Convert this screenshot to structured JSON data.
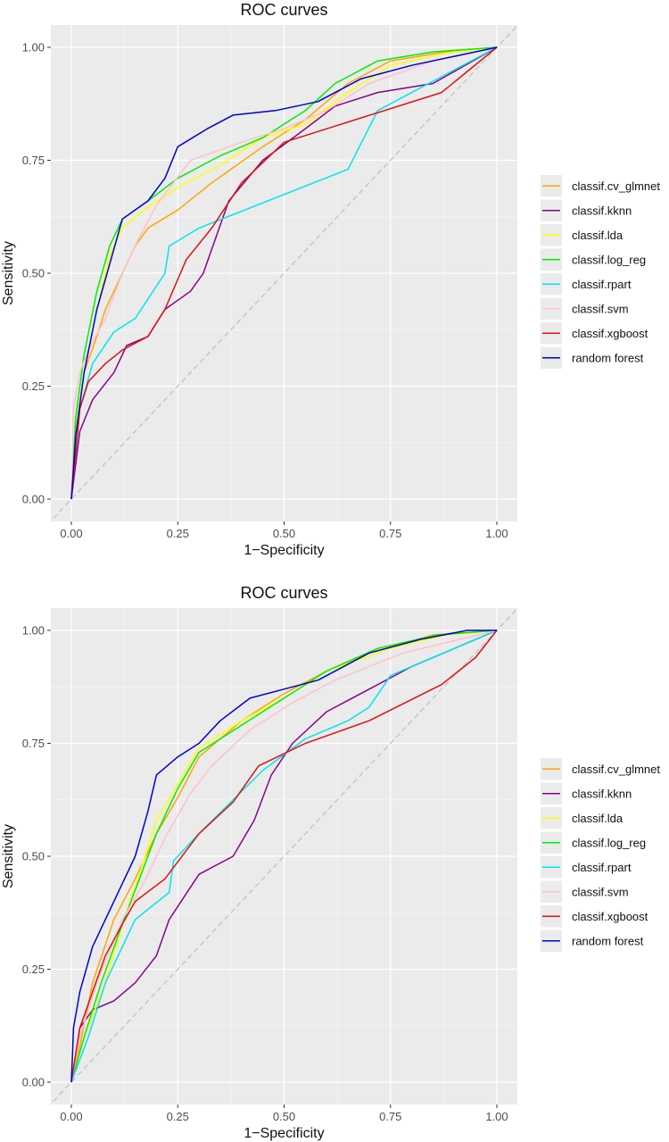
{
  "chart_data": [
    {
      "type": "line",
      "title": "ROC curves",
      "xlabel": "1−Specificity",
      "ylabel": "Sensitivity",
      "xlim": [
        0,
        1
      ],
      "ylim": [
        0,
        1
      ],
      "x_ticks": [
        "0.00",
        "0.25",
        "0.50",
        "0.75",
        "1.00"
      ],
      "y_ticks": [
        "0.00",
        "0.25",
        "0.50",
        "0.75",
        "1.00"
      ],
      "grid": true,
      "legend_position": "right",
      "diagonal_reference": {
        "style": "dashed",
        "color": "#bebebe",
        "points": [
          [
            0,
            0
          ],
          [
            1,
            1
          ]
        ]
      },
      "series": [
        {
          "name": "classif.cv_glmnet",
          "color": "#ffa500",
          "points": [
            [
              0,
              0
            ],
            [
              0.01,
              0.15
            ],
            [
              0.03,
              0.28
            ],
            [
              0.06,
              0.36
            ],
            [
              0.08,
              0.42
            ],
            [
              0.12,
              0.5
            ],
            [
              0.15,
              0.56
            ],
            [
              0.18,
              0.6
            ],
            [
              0.25,
              0.64
            ],
            [
              0.33,
              0.7
            ],
            [
              0.45,
              0.78
            ],
            [
              0.55,
              0.84
            ],
            [
              0.65,
              0.92
            ],
            [
              0.75,
              0.97
            ],
            [
              0.88,
              0.99
            ],
            [
              1,
              1
            ]
          ]
        },
        {
          "name": "classif.kknn",
          "color": "#8b008b",
          "points": [
            [
              0,
              0
            ],
            [
              0.02,
              0.15
            ],
            [
              0.05,
              0.22
            ],
            [
              0.1,
              0.28
            ],
            [
              0.13,
              0.34
            ],
            [
              0.18,
              0.36
            ],
            [
              0.22,
              0.42
            ],
            [
              0.28,
              0.46
            ],
            [
              0.31,
              0.5
            ],
            [
              0.34,
              0.58
            ],
            [
              0.37,
              0.66
            ],
            [
              0.45,
              0.75
            ],
            [
              0.55,
              0.82
            ],
            [
              0.62,
              0.87
            ],
            [
              0.72,
              0.9
            ],
            [
              0.85,
              0.92
            ],
            [
              1,
              1
            ]
          ]
        },
        {
          "name": "classif.lda",
          "color": "#ffff00",
          "points": [
            [
              0,
              0
            ],
            [
              0.01,
              0.15
            ],
            [
              0.03,
              0.28
            ],
            [
              0.06,
              0.42
            ],
            [
              0.09,
              0.54
            ],
            [
              0.12,
              0.6
            ],
            [
              0.17,
              0.64
            ],
            [
              0.25,
              0.69
            ],
            [
              0.35,
              0.74
            ],
            [
              0.45,
              0.8
            ],
            [
              0.55,
              0.83
            ],
            [
              0.65,
              0.9
            ],
            [
              0.75,
              0.96
            ],
            [
              0.9,
              0.99
            ],
            [
              1,
              1
            ]
          ]
        },
        {
          "name": "classif.log_reg",
          "color": "#00ee00",
          "points": [
            [
              0,
              0
            ],
            [
              0.01,
              0.18
            ],
            [
              0.03,
              0.32
            ],
            [
              0.06,
              0.46
            ],
            [
              0.09,
              0.56
            ],
            [
              0.12,
              0.62
            ],
            [
              0.18,
              0.66
            ],
            [
              0.25,
              0.71
            ],
            [
              0.35,
              0.76
            ],
            [
              0.45,
              0.8
            ],
            [
              0.55,
              0.86
            ],
            [
              0.62,
              0.92
            ],
            [
              0.72,
              0.97
            ],
            [
              0.85,
              0.99
            ],
            [
              1,
              1
            ]
          ]
        },
        {
          "name": "classif.rpart",
          "color": "#00e5ee",
          "points": [
            [
              0,
              0
            ],
            [
              0.02,
              0.2
            ],
            [
              0.05,
              0.3
            ],
            [
              0.1,
              0.37
            ],
            [
              0.15,
              0.4
            ],
            [
              0.22,
              0.5
            ],
            [
              0.23,
              0.56
            ],
            [
              0.3,
              0.6
            ],
            [
              0.65,
              0.73
            ],
            [
              0.72,
              0.86
            ],
            [
              1,
              1
            ]
          ]
        },
        {
          "name": "classif.svm",
          "color": "#ffc0cb",
          "points": [
            [
              0,
              0
            ],
            [
              0.005,
              0.2
            ],
            [
              0.02,
              0.28
            ],
            [
              0.04,
              0.33
            ],
            [
              0.08,
              0.4
            ],
            [
              0.12,
              0.5
            ],
            [
              0.16,
              0.58
            ],
            [
              0.2,
              0.65
            ],
            [
              0.28,
              0.75
            ],
            [
              0.4,
              0.79
            ],
            [
              0.5,
              0.82
            ],
            [
              0.6,
              0.86
            ],
            [
              0.7,
              0.92
            ],
            [
              0.85,
              0.97
            ],
            [
              1,
              1
            ]
          ]
        },
        {
          "name": "classif.xgboost",
          "color": "#dd1111",
          "points": [
            [
              0,
              0
            ],
            [
              0.02,
              0.2
            ],
            [
              0.04,
              0.26
            ],
            [
              0.08,
              0.3
            ],
            [
              0.12,
              0.33
            ],
            [
              0.18,
              0.36
            ],
            [
              0.22,
              0.42
            ],
            [
              0.27,
              0.53
            ],
            [
              0.33,
              0.6
            ],
            [
              0.4,
              0.7
            ],
            [
              0.5,
              0.79
            ],
            [
              0.87,
              0.9
            ],
            [
              1,
              1
            ]
          ]
        },
        {
          "name": "random forest",
          "color": "#0000cd",
          "points": [
            [
              0,
              0
            ],
            [
              0.01,
              0.14
            ],
            [
              0.03,
              0.28
            ],
            [
              0.06,
              0.42
            ],
            [
              0.09,
              0.52
            ],
            [
              0.12,
              0.62
            ],
            [
              0.18,
              0.66
            ],
            [
              0.22,
              0.71
            ],
            [
              0.25,
              0.78
            ],
            [
              0.32,
              0.82
            ],
            [
              0.38,
              0.85
            ],
            [
              0.48,
              0.86
            ],
            [
              0.58,
              0.88
            ],
            [
              0.68,
              0.93
            ],
            [
              0.8,
              0.96
            ],
            [
              0.9,
              0.98
            ],
            [
              1,
              1
            ]
          ]
        }
      ]
    },
    {
      "type": "line",
      "title": "ROC curves",
      "xlabel": "1−Specificity",
      "ylabel": "Sensitivity",
      "xlim": [
        0,
        1
      ],
      "ylim": [
        0,
        1
      ],
      "x_ticks": [
        "0.00",
        "0.25",
        "0.50",
        "0.75",
        "1.00"
      ],
      "y_ticks": [
        "0.00",
        "0.25",
        "0.50",
        "0.75",
        "1.00"
      ],
      "grid": true,
      "legend_position": "right",
      "diagonal_reference": {
        "style": "dashed",
        "color": "#bebebe",
        "points": [
          [
            0,
            0
          ],
          [
            1,
            1
          ]
        ]
      },
      "series": [
        {
          "name": "classif.cv_glmnet",
          "color": "#ffa500",
          "points": [
            [
              0,
              0
            ],
            [
              0.02,
              0.08
            ],
            [
              0.05,
              0.22
            ],
            [
              0.1,
              0.36
            ],
            [
              0.15,
              0.45
            ],
            [
              0.2,
              0.55
            ],
            [
              0.25,
              0.63
            ],
            [
              0.3,
              0.72
            ],
            [
              0.4,
              0.8
            ],
            [
              0.5,
              0.86
            ],
            [
              0.6,
              0.91
            ],
            [
              0.7,
              0.95
            ],
            [
              0.85,
              0.99
            ],
            [
              1,
              1
            ]
          ]
        },
        {
          "name": "classif.kknn",
          "color": "#8b008b",
          "points": [
            [
              0,
              0
            ],
            [
              0.02,
              0.12
            ],
            [
              0.05,
              0.16
            ],
            [
              0.1,
              0.18
            ],
            [
              0.15,
              0.22
            ],
            [
              0.2,
              0.28
            ],
            [
              0.23,
              0.36
            ],
            [
              0.3,
              0.46
            ],
            [
              0.38,
              0.5
            ],
            [
              0.43,
              0.58
            ],
            [
              0.47,
              0.68
            ],
            [
              0.52,
              0.75
            ],
            [
              0.6,
              0.82
            ],
            [
              0.68,
              0.86
            ],
            [
              0.8,
              0.92
            ],
            [
              1,
              1
            ]
          ]
        },
        {
          "name": "classif.lda",
          "color": "#ffff00",
          "points": [
            [
              0,
              0
            ],
            [
              0.03,
              0.1
            ],
            [
              0.08,
              0.22
            ],
            [
              0.12,
              0.35
            ],
            [
              0.16,
              0.46
            ],
            [
              0.2,
              0.58
            ],
            [
              0.25,
              0.66
            ],
            [
              0.3,
              0.74
            ],
            [
              0.4,
              0.8
            ],
            [
              0.5,
              0.85
            ],
            [
              0.6,
              0.91
            ],
            [
              0.75,
              0.96
            ],
            [
              0.88,
              0.99
            ],
            [
              1,
              1
            ]
          ]
        },
        {
          "name": "classif.log_reg",
          "color": "#00ee00",
          "points": [
            [
              0,
              0
            ],
            [
              0.03,
              0.1
            ],
            [
              0.07,
              0.22
            ],
            [
              0.12,
              0.35
            ],
            [
              0.16,
              0.45
            ],
            [
              0.2,
              0.55
            ],
            [
              0.25,
              0.65
            ],
            [
              0.3,
              0.73
            ],
            [
              0.4,
              0.79
            ],
            [
              0.5,
              0.85
            ],
            [
              0.6,
              0.91
            ],
            [
              0.72,
              0.96
            ],
            [
              0.86,
              0.99
            ],
            [
              1,
              1
            ]
          ]
        },
        {
          "name": "classif.rpart",
          "color": "#00e5ee",
          "points": [
            [
              0,
              0
            ],
            [
              0.04,
              0.1
            ],
            [
              0.08,
              0.22
            ],
            [
              0.15,
              0.36
            ],
            [
              0.23,
              0.42
            ],
            [
              0.24,
              0.49
            ],
            [
              0.3,
              0.55
            ],
            [
              0.45,
              0.69
            ],
            [
              0.55,
              0.76
            ],
            [
              0.65,
              0.8
            ],
            [
              0.7,
              0.83
            ],
            [
              0.75,
              0.9
            ],
            [
              1,
              1
            ]
          ]
        },
        {
          "name": "classif.svm",
          "color": "#ffc0cb",
          "points": [
            [
              0,
              0
            ],
            [
              0.02,
              0.1
            ],
            [
              0.06,
              0.22
            ],
            [
              0.12,
              0.36
            ],
            [
              0.17,
              0.44
            ],
            [
              0.22,
              0.54
            ],
            [
              0.28,
              0.64
            ],
            [
              0.33,
              0.7
            ],
            [
              0.42,
              0.78
            ],
            [
              0.52,
              0.84
            ],
            [
              0.62,
              0.89
            ],
            [
              0.78,
              0.95
            ],
            [
              1,
              1
            ]
          ]
        },
        {
          "name": "classif.xgboost",
          "color": "#dd1111",
          "points": [
            [
              0,
              0
            ],
            [
              0.02,
              0.12
            ],
            [
              0.05,
              0.2
            ],
            [
              0.08,
              0.28
            ],
            [
              0.12,
              0.35
            ],
            [
              0.15,
              0.4
            ],
            [
              0.22,
              0.45
            ],
            [
              0.3,
              0.55
            ],
            [
              0.38,
              0.62
            ],
            [
              0.44,
              0.7
            ],
            [
              0.55,
              0.75
            ],
            [
              0.7,
              0.8
            ],
            [
              0.87,
              0.88
            ],
            [
              0.95,
              0.94
            ],
            [
              1,
              1
            ]
          ]
        },
        {
          "name": "random forest",
          "color": "#0000cd",
          "points": [
            [
              0,
              0
            ],
            [
              0.005,
              0.12
            ],
            [
              0.02,
              0.2
            ],
            [
              0.05,
              0.3
            ],
            [
              0.1,
              0.4
            ],
            [
              0.15,
              0.5
            ],
            [
              0.18,
              0.6
            ],
            [
              0.2,
              0.68
            ],
            [
              0.25,
              0.72
            ],
            [
              0.3,
              0.75
            ],
            [
              0.35,
              0.8
            ],
            [
              0.42,
              0.85
            ],
            [
              0.5,
              0.87
            ],
            [
              0.58,
              0.89
            ],
            [
              0.7,
              0.95
            ],
            [
              0.82,
              0.98
            ],
            [
              0.93,
              1
            ],
            [
              1,
              1
            ]
          ]
        }
      ]
    }
  ]
}
